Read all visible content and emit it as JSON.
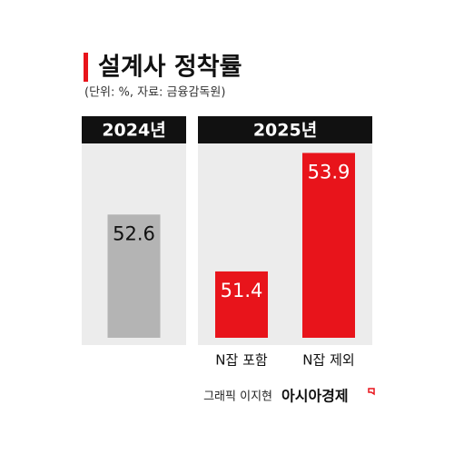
{
  "chart_data": {
    "type": "bar",
    "title": "설계사 정착률",
    "subtitle": "(단위: %, 자료: 금융감독원)",
    "groups": [
      {
        "name": "2024년",
        "categories": [
          null
        ],
        "values": [
          52.6
        ],
        "colors": [
          "#b4b4b4"
        ]
      },
      {
        "name": "2025년",
        "categories": [
          "N잡 포함",
          "N잡 제외"
        ],
        "values": [
          51.4,
          53.9
        ],
        "colors": [
          "#e8141b",
          "#e8141b"
        ]
      }
    ],
    "ylim": [
      50,
      54.1
    ]
  },
  "credit": "그래픽 이지현",
  "logo": "아시아경제"
}
